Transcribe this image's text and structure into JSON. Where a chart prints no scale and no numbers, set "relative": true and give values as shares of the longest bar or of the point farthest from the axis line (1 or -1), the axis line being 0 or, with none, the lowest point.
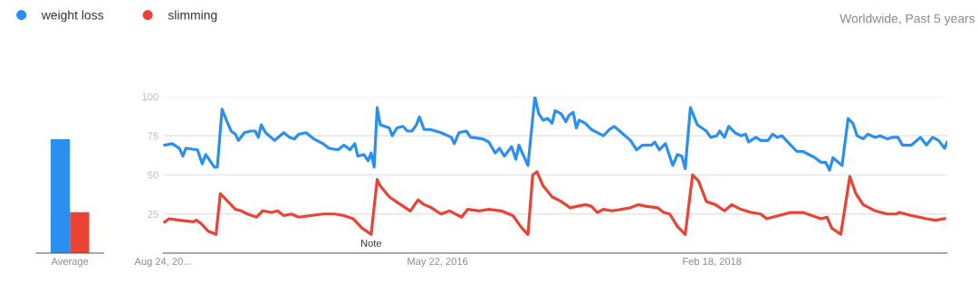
{
  "chart_data": [
    {
      "type": "bar",
      "categories": [
        "Average"
      ],
      "relative": true,
      "series": [
        {
          "color": "#2b8ff0",
          "values": [
            1
          ]
        },
        {
          "color": "#ea4335",
          "values": [
            0.36
          ]
        }
      ]
    },
    {
      "type": "line",
      "xlim": [
        "2014-08-24",
        "2019-08-18"
      ],
      "xticks": [
        {
          "value": "2014-08-24",
          "label": "Aug 24, 20..."
        },
        {
          "value": "2016-05-22",
          "label": "May 22, 2016"
        },
        {
          "value": "2018-02-18",
          "label": "Feb 18, 2018"
        }
      ],
      "ylim": [
        0,
        100
      ],
      "yticks": [
        25,
        50,
        75,
        100
      ],
      "grid": "y",
      "legend": "top left",
      "marker": "none",
      "line_style": "solid",
      "annotations": [
        {
          "text": "Note",
          "x": "2015-12-20",
          "y": 12
        },
        "Worldwide, Past 5 years"
      ],
      "series": [
        {
          "name": "weight loss",
          "color": "#2b8ff0",
          "x": [
            "2014-08-28",
            "2014-09-14",
            "2014-10-01",
            "2014-10-09",
            "2014-10-16",
            "2014-11-12",
            "2014-11-23",
            "2014-12-01",
            "2014-12-21",
            "2014-12-28",
            "2015-01-08",
            "2015-01-18",
            "2015-01-29",
            "2015-02-08",
            "2015-02-15",
            "2015-03-01",
            "2015-03-15",
            "2015-03-26",
            "2015-04-02",
            "2015-04-09",
            "2015-04-19",
            "2015-05-10",
            "2015-05-31",
            "2015-06-14",
            "2015-06-25",
            "2015-07-05",
            "2015-07-22",
            "2015-08-09",
            "2015-08-30",
            "2015-09-13",
            "2015-10-04",
            "2015-10-18",
            "2015-11-01",
            "2015-11-12",
            "2015-11-19",
            "2015-12-03",
            "2015-12-13",
            "2015-12-20",
            "2015-12-27",
            "2016-01-03",
            "2016-01-10",
            "2016-01-31",
            "2016-02-07",
            "2016-02-18",
            "2016-03-03",
            "2016-03-13",
            "2016-03-24",
            "2016-04-03",
            "2016-04-10",
            "2016-04-21",
            "2016-05-05",
            "2016-05-30",
            "2016-06-23",
            "2016-06-30",
            "2016-07-11",
            "2016-07-28",
            "2016-08-07",
            "2016-09-04",
            "2016-09-18",
            "2016-10-03",
            "2016-10-13",
            "2016-10-24",
            "2016-11-10",
            "2016-11-20",
            "2016-11-27",
            "2016-12-08",
            "2016-12-18",
            "2017-01-03",
            "2017-01-12",
            "2017-01-22",
            "2017-02-02",
            "2017-02-12",
            "2017-02-19",
            "2017-03-05",
            "2017-03-16",
            "2017-03-23",
            "2017-04-02",
            "2017-04-09",
            "2017-04-16",
            "2017-04-30",
            "2017-05-14",
            "2017-06-11",
            "2017-06-25",
            "2017-07-06",
            "2017-07-23",
            "2017-08-13",
            "2017-08-27",
            "2017-09-10",
            "2017-10-01",
            "2017-10-08",
            "2017-10-19",
            "2017-11-02",
            "2017-11-19",
            "2017-11-30",
            "2017-12-10",
            "2017-12-18",
            "2017-12-30",
            "2018-01-15",
            "2018-02-05",
            "2018-02-15",
            "2018-03-01",
            "2018-03-08",
            "2018-03-19",
            "2018-03-29",
            "2018-04-12",
            "2018-04-26",
            "2018-05-07",
            "2018-05-14",
            "2018-05-31",
            "2018-06-11",
            "2018-06-28",
            "2018-07-09",
            "2018-07-19",
            "2018-07-30",
            "2018-08-20",
            "2018-09-03",
            "2018-09-17",
            "2018-10-01",
            "2018-10-15",
            "2018-10-29",
            "2018-11-09",
            "2018-11-18",
            "2018-11-26",
            "2018-12-17",
            "2018-12-31",
            "2019-01-11",
            "2019-01-21",
            "2019-02-04",
            "2019-02-15",
            "2019-03-04",
            "2019-03-15",
            "2019-04-01",
            "2019-04-12",
            "2019-04-26",
            "2019-05-06",
            "2019-05-27",
            "2019-06-17",
            "2019-07-01",
            "2019-07-15",
            "2019-07-29",
            "2019-08-12",
            "2019-08-18"
          ],
          "values": [
            69,
            70,
            67,
            62,
            67,
            66,
            57,
            63,
            55,
            55,
            92,
            85,
            78,
            76,
            72,
            77,
            78,
            78,
            74,
            82,
            77,
            72,
            77,
            74,
            73,
            76,
            77,
            73,
            70,
            67,
            66,
            69,
            66,
            70,
            62,
            63,
            59,
            64,
            55,
            93,
            82,
            80,
            75,
            80,
            81,
            78,
            78,
            82,
            87,
            79,
            79,
            77,
            74,
            70,
            77,
            78,
            74,
            73,
            71,
            64,
            67,
            62,
            68,
            60,
            69,
            62,
            56,
            100,
            89,
            85,
            86,
            83,
            91,
            89,
            84,
            88,
            90,
            80,
            85,
            83,
            79,
            75,
            79,
            81,
            77,
            72,
            66,
            69,
            69,
            71,
            66,
            70,
            56,
            63,
            62,
            54,
            93,
            82,
            78,
            74,
            75,
            78,
            74,
            81,
            77,
            75,
            76,
            71,
            74,
            72,
            72,
            76,
            74,
            75,
            69,
            65,
            65,
            63,
            61,
            58,
            58,
            53,
            61,
            56,
            86,
            83,
            75,
            73,
            76,
            74,
            75,
            73,
            74,
            74,
            69,
            69,
            74,
            69,
            74,
            72,
            67,
            71
          ]
        },
        {
          "name": "slimming",
          "color": "#ea4335",
          "x": [
            "2014-08-28",
            "2014-09-07",
            "2014-10-01",
            "2014-11-02",
            "2014-11-09",
            "2014-11-20",
            "2014-12-07",
            "2014-12-25",
            "2015-01-04",
            "2015-01-18",
            "2015-02-08",
            "2015-02-22",
            "2015-03-08",
            "2015-03-29",
            "2015-04-12",
            "2015-05-03",
            "2015-05-17",
            "2015-05-31",
            "2015-06-18",
            "2015-07-05",
            "2015-08-02",
            "2015-08-30",
            "2015-09-27",
            "2015-10-18",
            "2015-11-08",
            "2015-11-29",
            "2015-12-20",
            "2016-01-03",
            "2016-01-10",
            "2016-01-31",
            "2016-02-21",
            "2016-03-20",
            "2016-04-07",
            "2016-04-21",
            "2016-05-08",
            "2016-05-30",
            "2016-06-19",
            "2016-07-17",
            "2016-07-31",
            "2016-08-28",
            "2016-09-18",
            "2016-10-17",
            "2016-11-13",
            "2016-12-04",
            "2016-12-18",
            "2016-12-29",
            "2017-01-08",
            "2017-01-22",
            "2017-02-12",
            "2017-03-05",
            "2017-03-26",
            "2017-04-30",
            "2017-05-14",
            "2017-05-28",
            "2017-06-11",
            "2017-07-02",
            "2017-08-13",
            "2017-08-31",
            "2017-09-17",
            "2017-10-15",
            "2017-10-29",
            "2017-11-12",
            "2017-11-30",
            "2017-12-18",
            "2018-01-04",
            "2018-01-18",
            "2018-02-05",
            "2018-02-26",
            "2018-03-19",
            "2018-04-05",
            "2018-04-26",
            "2018-05-20",
            "2018-06-11",
            "2018-06-25",
            "2018-07-23",
            "2018-08-20",
            "2018-09-17",
            "2018-10-08",
            "2018-10-29",
            "2018-11-12",
            "2018-11-23",
            "2018-12-14",
            "2019-01-04",
            "2019-01-18",
            "2019-02-04",
            "2019-03-04",
            "2019-04-01",
            "2019-04-22",
            "2019-04-29",
            "2019-05-27",
            "2019-07-01",
            "2019-07-22",
            "2019-08-12"
          ],
          "values": [
            20,
            22,
            21,
            20,
            21,
            19,
            14,
            12,
            38,
            34,
            28,
            27,
            25,
            23,
            27,
            26,
            27,
            24,
            25,
            23,
            24,
            25,
            25,
            24,
            22,
            16,
            12,
            47,
            43,
            36,
            32,
            27,
            34,
            31,
            29,
            25,
            27,
            23,
            28,
            27,
            28,
            27,
            24,
            16,
            12,
            50,
            52,
            43,
            36,
            33,
            29,
            31,
            30,
            26,
            28,
            27,
            29,
            31,
            30,
            29,
            26,
            25,
            17,
            12,
            50,
            46,
            33,
            31,
            27,
            31,
            28,
            26,
            25,
            22,
            24,
            26,
            26,
            24,
            22,
            23,
            16,
            12,
            49,
            38,
            31,
            27,
            25,
            25,
            26,
            24,
            22,
            21,
            22
          ]
        }
      ]
    }
  ]
}
